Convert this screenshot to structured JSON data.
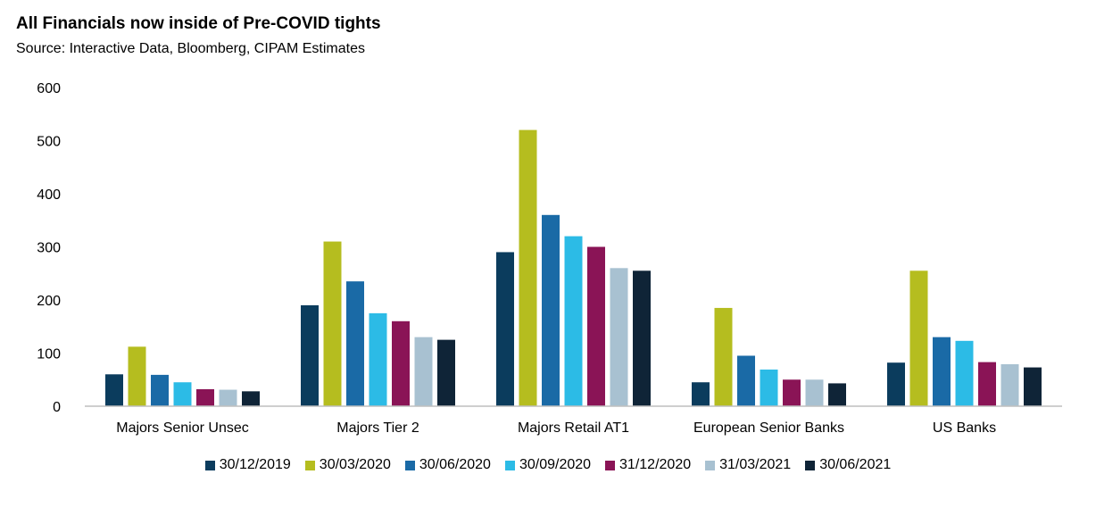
{
  "chart_data": {
    "type": "bar",
    "title": "All Financials now inside of Pre-COVID tights",
    "subtitle": "Source: Interactive Data, Bloomberg, CIPAM Estimates",
    "xlabel": "",
    "ylabel": "",
    "ylim": [
      0,
      600
    ],
    "yticks": [
      0,
      100,
      200,
      300,
      400,
      500,
      600
    ],
    "grid": false,
    "legend_position": "bottom",
    "categories": [
      "Majors Senior Unsec",
      "Majors Tier 2",
      "Majors Retail AT1",
      "European Senior Banks",
      "US Banks"
    ],
    "series": [
      {
        "name": "30/12/2019",
        "color": "#0b3c5d",
        "values": [
          60,
          190,
          290,
          45,
          82
        ]
      },
      {
        "name": "30/03/2020",
        "color": "#b5bd1f",
        "values": [
          112,
          310,
          520,
          185,
          255
        ]
      },
      {
        "name": "30/06/2020",
        "color": "#1a6aa6",
        "values": [
          59,
          235,
          360,
          95,
          130
        ]
      },
      {
        "name": "30/09/2020",
        "color": "#2cbbe6",
        "values": [
          45,
          175,
          320,
          69,
          123
        ]
      },
      {
        "name": "31/12/2020",
        "color": "#8a1456",
        "values": [
          32,
          160,
          300,
          50,
          83
        ]
      },
      {
        "name": "31/03/2021",
        "color": "#a8c1d1",
        "values": [
          31,
          130,
          260,
          50,
          79
        ]
      },
      {
        "name": "30/06/2021",
        "color": "#0f2437",
        "values": [
          28,
          125,
          255,
          43,
          73
        ]
      }
    ]
  }
}
